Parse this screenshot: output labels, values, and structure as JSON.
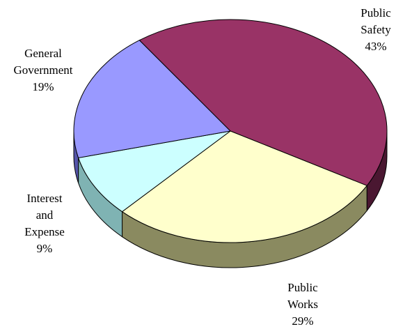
{
  "chart_data": {
    "type": "pie",
    "variant": "3d",
    "title": "",
    "legend": "none",
    "slices": [
      {
        "label_lines": [
          "Public",
          "Safety"
        ],
        "value": 43,
        "value_label": "43%",
        "color": "#993366",
        "side_color": "#4a1731"
      },
      {
        "label_lines": [
          "Public",
          "Works"
        ],
        "value": 29,
        "value_label": "29%",
        "color": "#ffffcc",
        "side_color": "#8a8a60"
      },
      {
        "label_lines": [
          "Interest",
          "and",
          "Expense"
        ],
        "value": 9,
        "value_label": "9%",
        "color": "#ccffff",
        "side_color": "#7fb3b3"
      },
      {
        "label_lines": [
          "General",
          "Government"
        ],
        "value": 19,
        "value_label": "19%",
        "color": "#9999ff",
        "side_color": "#5555aa"
      }
    ]
  }
}
